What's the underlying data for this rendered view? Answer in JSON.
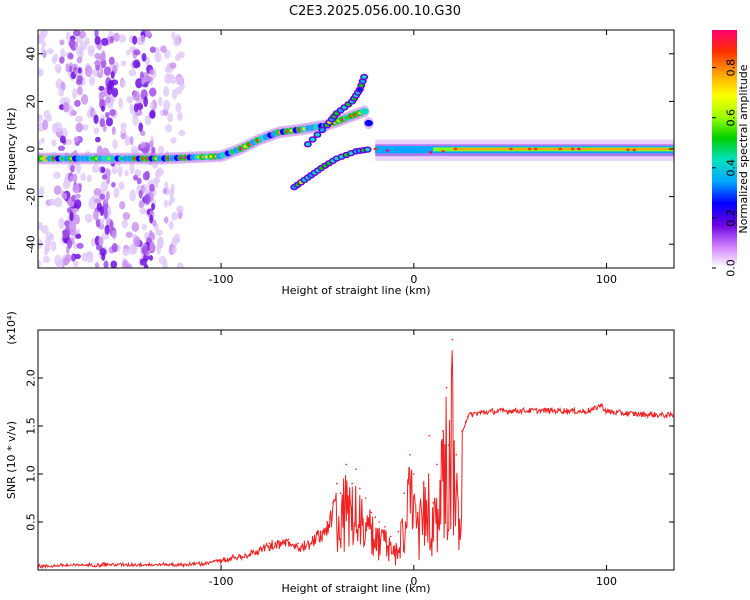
{
  "title": "C2E3.2025.056.00.10.G30",
  "chart_data": [
    {
      "type": "heatmap",
      "xlabel": "Height of straight line (km)",
      "ylabel": "Frequency (Hz)",
      "xlim": [
        -195,
        135
      ],
      "ylim": [
        -50,
        50
      ],
      "x_ticks": [
        -100,
        0,
        100
      ],
      "y_ticks": [
        -40,
        -20,
        0,
        20,
        40
      ],
      "colorbar": {
        "label": "Normalized spectral amplitude",
        "range": [
          0,
          0.95
        ],
        "ticks": [
          0.0,
          0.2,
          0.4,
          0.6,
          0.8
        ],
        "colors": [
          "#ffffff",
          "#d080ff",
          "#6a00e0",
          "#0000ff",
          "#00a8ff",
          "#00e0c0",
          "#00d000",
          "#a0ff00",
          "#ffff00",
          "#ffa000",
          "#ff3000",
          "#ff0070"
        ]
      },
      "main_band": [
        {
          "x": -195,
          "y": -4
        },
        {
          "x": -160,
          "y": -4
        },
        {
          "x": -130,
          "y": -4
        },
        {
          "x": -100,
          "y": -3
        },
        {
          "x": -90,
          "y": 0
        },
        {
          "x": -80,
          "y": 4
        },
        {
          "x": -70,
          "y": 7
        },
        {
          "x": -60,
          "y": 8
        },
        {
          "x": -45,
          "y": 10
        },
        {
          "x": -35,
          "y": 13
        },
        {
          "x": -25,
          "y": 16
        },
        {
          "x": -20,
          "y": 0
        },
        {
          "x": 0,
          "y": -2
        },
        {
          "x": 15,
          "y": -1
        },
        {
          "x": 20,
          "y": 0
        },
        {
          "x": 60,
          "y": 0
        },
        {
          "x": 100,
          "y": 0
        },
        {
          "x": 135,
          "y": -1
        }
      ],
      "rising_branch": [
        {
          "x": -55,
          "y": 2
        },
        {
          "x": -45,
          "y": 10
        },
        {
          "x": -40,
          "y": 15
        },
        {
          "x": -32,
          "y": 20
        },
        {
          "x": -28,
          "y": 25
        },
        {
          "x": -25,
          "y": 32
        }
      ],
      "falling_branch": [
        {
          "x": -62,
          "y": -16
        },
        {
          "x": -55,
          "y": -12
        },
        {
          "x": -48,
          "y": -8
        },
        {
          "x": -40,
          "y": -4
        },
        {
          "x": -30,
          "y": -1
        },
        {
          "x": -22,
          "y": 0
        }
      ],
      "noise_region_x": [
        -195,
        -120
      ],
      "noise_clusters_x": [
        -178,
        -160,
        -140
      ]
    },
    {
      "type": "line",
      "xlabel": "Height of straight line (km)",
      "ylabel": "SNR (10 * v/v)",
      "y_multiplier": "(x10⁴)",
      "xlim": [
        -195,
        135
      ],
      "ylim": [
        0,
        2.5
      ],
      "x_ticks": [
        -100,
        0,
        100
      ],
      "y_ticks": [
        0.5,
        1.0,
        1.5,
        2.0
      ],
      "color": "#ee2222",
      "series": [
        {
          "x": [
            -195,
            -180,
            -160,
            -140,
            -120,
            -110,
            -100,
            -90,
            -80,
            -75,
            -70,
            -65,
            -60,
            -55,
            -50,
            -45,
            -42,
            -40,
            -38,
            -35,
            -32,
            -30,
            -28,
            -25,
            -22,
            -20,
            -18,
            -15,
            -12,
            -10,
            -8,
            -5,
            -2,
            0,
            2,
            5,
            8,
            10,
            12,
            15,
            17,
            18,
            20,
            22,
            25,
            28,
            30,
            35,
            40,
            50,
            60,
            70,
            80,
            88,
            93,
            97,
            100,
            110,
            120,
            135
          ],
          "y": [
            0.03,
            0.04,
            0.05,
            0.05,
            0.05,
            0.06,
            0.1,
            0.15,
            0.22,
            0.28,
            0.3,
            0.32,
            0.28,
            0.3,
            0.4,
            0.5,
            0.7,
            0.9,
            0.8,
            1.1,
            0.9,
            1.05,
            0.85,
            0.75,
            0.6,
            0.55,
            0.5,
            0.45,
            0.35,
            0.25,
            0.4,
            0.8,
            1.2,
            1.0,
            0.6,
            0.9,
            1.4,
            0.7,
            1.1,
            1.45,
            1.9,
            1.3,
            2.4,
            1.2,
            1.45,
            1.6,
            1.62,
            1.64,
            1.65,
            1.66,
            1.66,
            1.66,
            1.66,
            1.65,
            1.67,
            1.72,
            1.65,
            1.63,
            1.62,
            1.61
          ]
        }
      ]
    }
  ]
}
